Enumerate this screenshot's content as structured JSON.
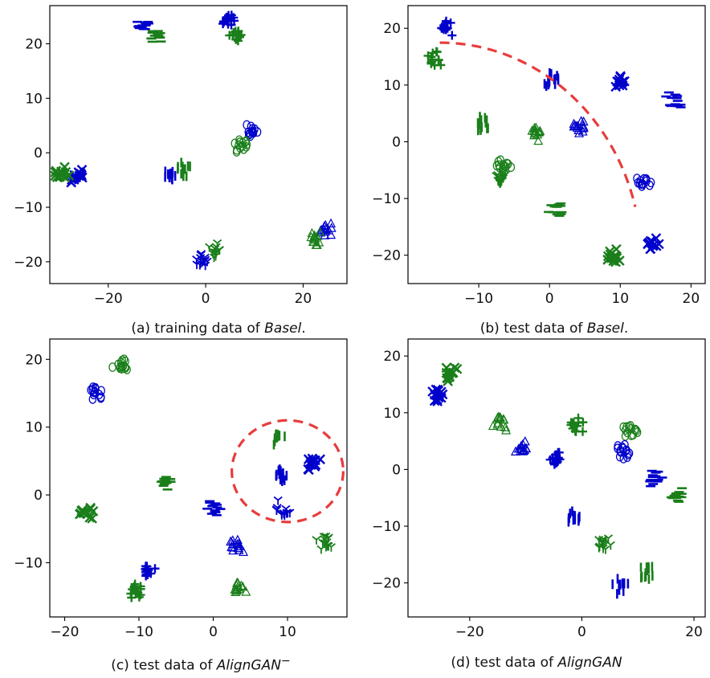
{
  "chart_data": [
    {
      "type": "scatter",
      "id": "a",
      "caption_prefix": "(a) training data of ",
      "caption_name": "Basel",
      "caption_suffix": ".",
      "xlim": [
        -32,
        29
      ],
      "ylim": [
        -24,
        27
      ],
      "xticks": [
        -20,
        0,
        20
      ],
      "yticks": [
        -20,
        -10,
        0,
        10,
        20
      ],
      "xtick_labels": [
        "−20",
        "0",
        "20"
      ],
      "ytick_labels": [
        "−20",
        "−10",
        "0",
        "10",
        "20"
      ],
      "series": [
        {
          "color": "#0000cc",
          "marker": "x",
          "center": [
            -26.5,
            -4.5
          ]
        },
        {
          "color": "#1a7f1a",
          "marker": "x",
          "center": [
            -29.5,
            -4.0
          ]
        },
        {
          "color": "#0000cc",
          "marker": "|",
          "center": [
            -7.5,
            -4.0
          ]
        },
        {
          "color": "#1a7f1a",
          "marker": "|",
          "center": [
            -4.5,
            -3.0
          ]
        },
        {
          "color": "#0000cc",
          "marker": "_",
          "center": [
            -12.5,
            23.3
          ]
        },
        {
          "color": "#1a7f1a",
          "marker": "_",
          "center": [
            -10.0,
            21.5
          ]
        },
        {
          "color": "#0000cc",
          "marker": "+",
          "center": [
            5.0,
            24.2
          ]
        },
        {
          "color": "#1a7f1a",
          "marker": "+",
          "center": [
            6.5,
            21.5
          ]
        },
        {
          "color": "#0000cc",
          "marker": "o",
          "center": [
            9.0,
            4.0
          ]
        },
        {
          "color": "#1a7f1a",
          "marker": "o",
          "center": [
            7.0,
            1.5
          ]
        },
        {
          "color": "#0000cc",
          "marker": "y",
          "center": [
            -1.0,
            -19.5
          ]
        },
        {
          "color": "#1a7f1a",
          "marker": "y",
          "center": [
            1.5,
            -18.0
          ]
        },
        {
          "color": "#0000cc",
          "marker": "^",
          "center": [
            24.5,
            -14.0
          ]
        },
        {
          "color": "#1a7f1a",
          "marker": "^",
          "center": [
            22.5,
            -16.0
          ]
        }
      ]
    },
    {
      "type": "scatter",
      "id": "b",
      "caption_prefix": "(b) test data of ",
      "caption_name": "Basel",
      "caption_suffix": ".",
      "xlim": [
        -20,
        22
      ],
      "ylim": [
        -25,
        24
      ],
      "xticks": [
        -10,
        0,
        10,
        20
      ],
      "yticks": [
        -20,
        -10,
        0,
        10,
        20
      ],
      "xtick_labels": [
        "−10",
        "0",
        "10",
        "20"
      ],
      "ytick_labels": [
        "−20",
        "−10",
        "0",
        "10",
        "20"
      ],
      "series": [
        {
          "color": "#0000cc",
          "marker": "+",
          "center": [
            -14.5,
            20.0
          ]
        },
        {
          "color": "#1a7f1a",
          "marker": "+",
          "center": [
            -16.0,
            14.5
          ]
        },
        {
          "color": "#0000cc",
          "marker": "|",
          "center": [
            0.5,
            11.0
          ]
        },
        {
          "color": "#0000cc",
          "marker": "x",
          "center": [
            10.0,
            10.5
          ]
        },
        {
          "color": "#0000cc",
          "marker": "_",
          "center": [
            17.5,
            7.5
          ]
        },
        {
          "color": "#1a7f1a",
          "marker": "|",
          "center": [
            -9.5,
            3.0
          ]
        },
        {
          "color": "#1a7f1a",
          "marker": "^",
          "center": [
            -2.0,
            1.5
          ]
        },
        {
          "color": "#0000cc",
          "marker": "^",
          "center": [
            4.5,
            2.5
          ]
        },
        {
          "color": "#1a7f1a",
          "marker": "o",
          "center": [
            -6.5,
            -4.0
          ]
        },
        {
          "color": "#1a7f1a",
          "marker": "y",
          "center": [
            -7.0,
            -6.5
          ]
        },
        {
          "color": "#0000cc",
          "marker": "o",
          "center": [
            13.5,
            -7.5
          ]
        },
        {
          "color": "#1a7f1a",
          "marker": "_",
          "center": [
            1.0,
            -12.0
          ]
        },
        {
          "color": "#1a7f1a",
          "marker": "x",
          "center": [
            9.0,
            -20.0
          ]
        },
        {
          "color": "#0000cc",
          "marker": "x",
          "center": [
            14.5,
            -18.0
          ]
        }
      ],
      "annotation": {
        "kind": "arc",
        "color": "#e83c3c",
        "style": "dashed",
        "center": [
          -15.5,
          -21.0
        ],
        "radius": 28.5
      }
    },
    {
      "type": "scatter",
      "id": "c",
      "caption_prefix": "(c) test data of ",
      "caption_name": "AlignGAN",
      "caption_suffix": "",
      "caption_sup": "−",
      "xlim": [
        -22,
        18
      ],
      "ylim": [
        -18,
        23
      ],
      "xticks": [
        -20,
        -10,
        0,
        10
      ],
      "yticks": [
        -10,
        0,
        10,
        20
      ],
      "xtick_labels": [
        "−20",
        "−10",
        "0",
        "10"
      ],
      "ytick_labels": [
        "−10",
        "0",
        "10",
        "20"
      ],
      "series": [
        {
          "color": "#0000cc",
          "marker": "o",
          "center": [
            -16.0,
            15.0
          ]
        },
        {
          "color": "#1a7f1a",
          "marker": "o",
          "center": [
            -12.5,
            19.0
          ]
        },
        {
          "color": "#1a7f1a",
          "marker": "x",
          "center": [
            -17.0,
            -2.5
          ]
        },
        {
          "color": "#1a7f1a",
          "marker": "_",
          "center": [
            -6.5,
            2.0
          ]
        },
        {
          "color": "#0000cc",
          "marker": "_",
          "center": [
            0.0,
            -2.0
          ]
        },
        {
          "color": "#0000cc",
          "marker": "+",
          "center": [
            -8.5,
            -11.0
          ]
        },
        {
          "color": "#1a7f1a",
          "marker": "+",
          "center": [
            -10.5,
            -14.0
          ]
        },
        {
          "color": "#0000cc",
          "marker": "^",
          "center": [
            3.0,
            -7.5
          ]
        },
        {
          "color": "#1a7f1a",
          "marker": "^",
          "center": [
            3.5,
            -14.0
          ]
        },
        {
          "color": "#1a7f1a",
          "marker": "|",
          "center": [
            8.5,
            8.5
          ]
        },
        {
          "color": "#0000cc",
          "marker": "|",
          "center": [
            9.0,
            3.0
          ]
        },
        {
          "color": "#0000cc",
          "marker": "x",
          "center": [
            13.5,
            4.5
          ]
        },
        {
          "color": "#0000cc",
          "marker": "y",
          "center": [
            9.5,
            -2.0
          ]
        },
        {
          "color": "#1a7f1a",
          "marker": "y",
          "center": [
            15.0,
            -7.0
          ]
        }
      ],
      "annotation": {
        "kind": "circle",
        "color": "#e83c3c",
        "style": "dashed",
        "center": [
          10.0,
          3.5
        ],
        "radius": 7.5
      }
    },
    {
      "type": "scatter",
      "id": "d",
      "caption_prefix": "(d) test data of ",
      "caption_name": "AlignGAN",
      "caption_suffix": "",
      "xlim": [
        -31,
        22
      ],
      "ylim": [
        -26,
        23
      ],
      "xticks": [
        -20,
        0,
        20
      ],
      "yticks": [
        -20,
        -10,
        0,
        10,
        20
      ],
      "xtick_labels": [
        "−20",
        "0",
        "20"
      ],
      "ytick_labels": [
        "−20",
        "−10",
        "0",
        "10",
        "20"
      ],
      "series": [
        {
          "color": "#0000cc",
          "marker": "x",
          "center": [
            -25.5,
            13.0
          ]
        },
        {
          "color": "#1a7f1a",
          "marker": "x",
          "center": [
            -23.5,
            17.0
          ]
        },
        {
          "color": "#1a7f1a",
          "marker": "^",
          "center": [
            -14.5,
            8.0
          ]
        },
        {
          "color": "#0000cc",
          "marker": "^",
          "center": [
            -10.5,
            3.5
          ]
        },
        {
          "color": "#0000cc",
          "marker": "+",
          "center": [
            -4.5,
            2.0
          ]
        },
        {
          "color": "#1a7f1a",
          "marker": "+",
          "center": [
            -1.0,
            8.0
          ]
        },
        {
          "color": "#1a7f1a",
          "marker": "o",
          "center": [
            8.5,
            7.0
          ]
        },
        {
          "color": "#0000cc",
          "marker": "o",
          "center": [
            7.5,
            3.0
          ]
        },
        {
          "color": "#0000cc",
          "marker": "_",
          "center": [
            13.0,
            -1.5
          ]
        },
        {
          "color": "#1a7f1a",
          "marker": "_",
          "center": [
            17.0,
            -4.5
          ]
        },
        {
          "color": "#0000cc",
          "marker": "|",
          "center": [
            -1.5,
            -8.5
          ]
        },
        {
          "color": "#1a7f1a",
          "marker": "y",
          "center": [
            4.0,
            -13.0
          ]
        },
        {
          "color": "#0000cc",
          "marker": "|",
          "center": [
            7.0,
            -20.5
          ]
        },
        {
          "color": "#1a7f1a",
          "marker": "|",
          "center": [
            11.5,
            -18.0
          ]
        }
      ]
    }
  ]
}
